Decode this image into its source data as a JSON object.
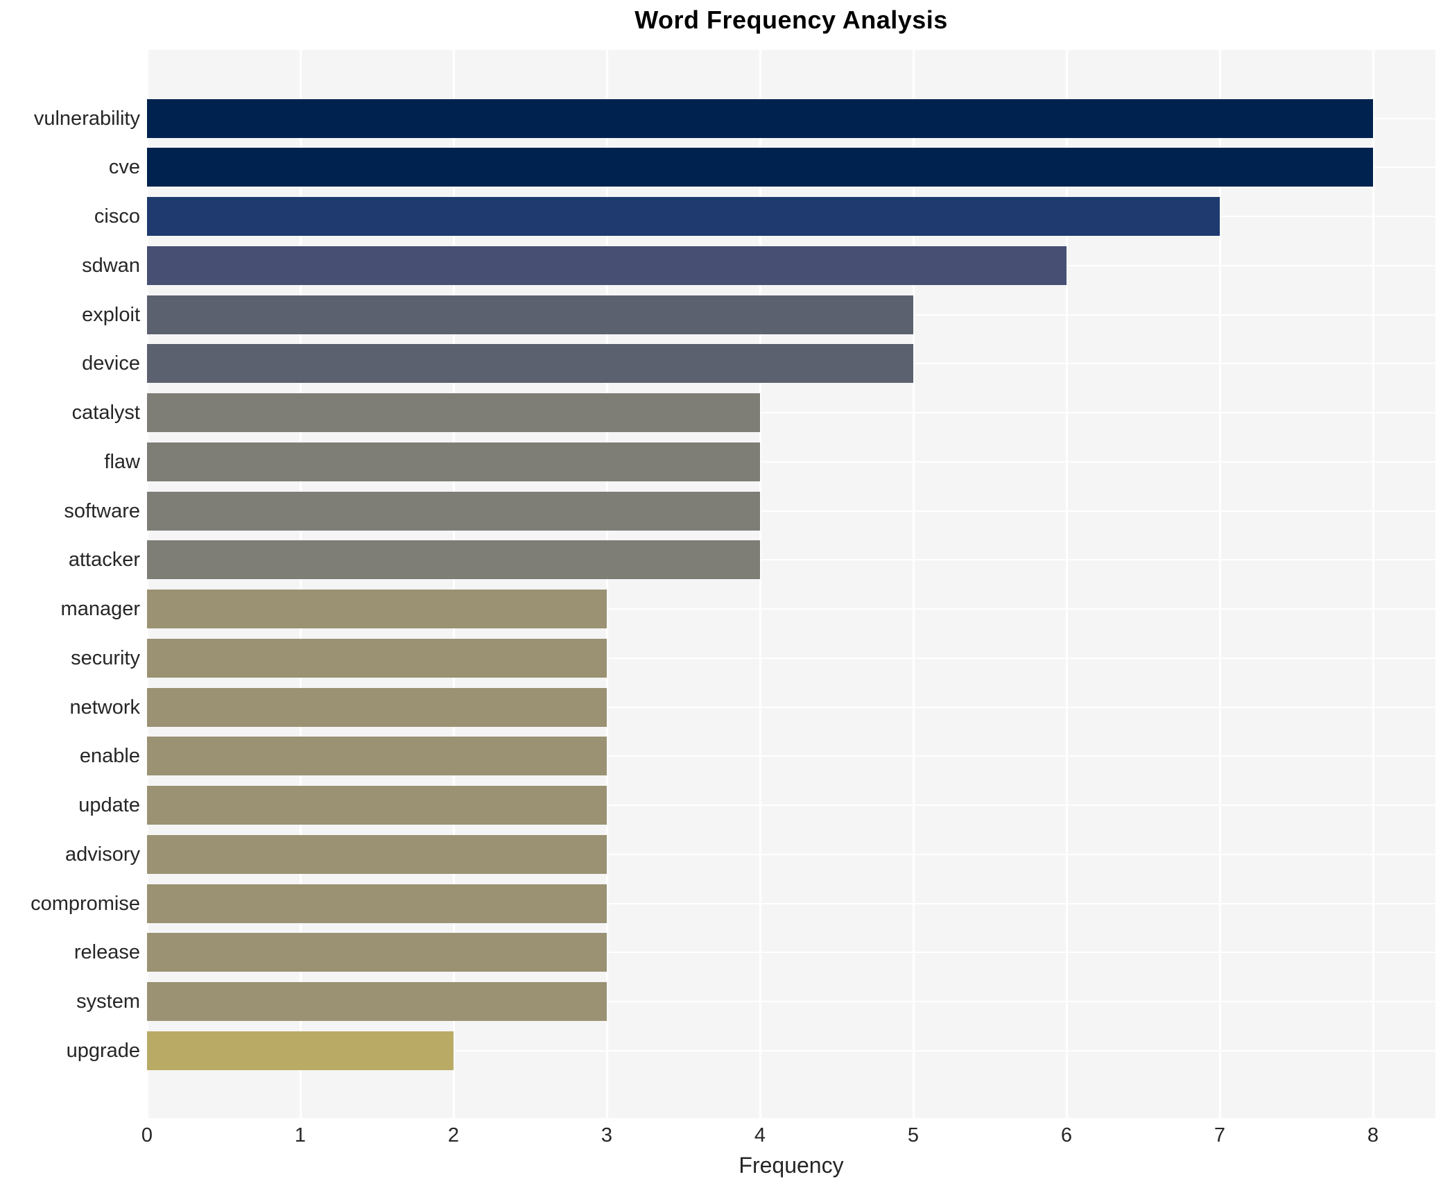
{
  "chart_data": {
    "type": "bar",
    "orientation": "horizontal",
    "title": "Word Frequency Analysis",
    "xlabel": "Frequency",
    "ylabel": "",
    "categories": [
      "vulnerability",
      "cve",
      "cisco",
      "sdwan",
      "exploit",
      "device",
      "catalyst",
      "flaw",
      "software",
      "attacker",
      "manager",
      "security",
      "network",
      "enable",
      "update",
      "advisory",
      "compromise",
      "release",
      "system",
      "upgrade"
    ],
    "values": [
      8,
      8,
      7,
      6,
      5,
      5,
      4,
      4,
      4,
      4,
      3,
      3,
      3,
      3,
      3,
      3,
      3,
      3,
      3,
      2
    ],
    "bar_colors": [
      "#00224e",
      "#00224e",
      "#1e3a6e",
      "#475073",
      "#5c6170",
      "#5c6170",
      "#7e7d76",
      "#7e7d76",
      "#7e7d76",
      "#7e7d76",
      "#9a9273",
      "#9a9273",
      "#9a9273",
      "#9a9273",
      "#9a9273",
      "#9a9273",
      "#9a9273",
      "#9a9273",
      "#9a9273",
      "#b9ab66"
    ],
    "x_ticks": [
      0,
      1,
      2,
      3,
      4,
      5,
      6,
      7,
      8
    ],
    "xlim": [
      0,
      8.4
    ],
    "grid": true,
    "legend": false,
    "colors": {
      "plot_background": "#f5f5f6",
      "figure_background": "#ffffff",
      "grid_line": "#ffffff",
      "tick_text": "#262626",
      "title_text": "#000000"
    }
  }
}
